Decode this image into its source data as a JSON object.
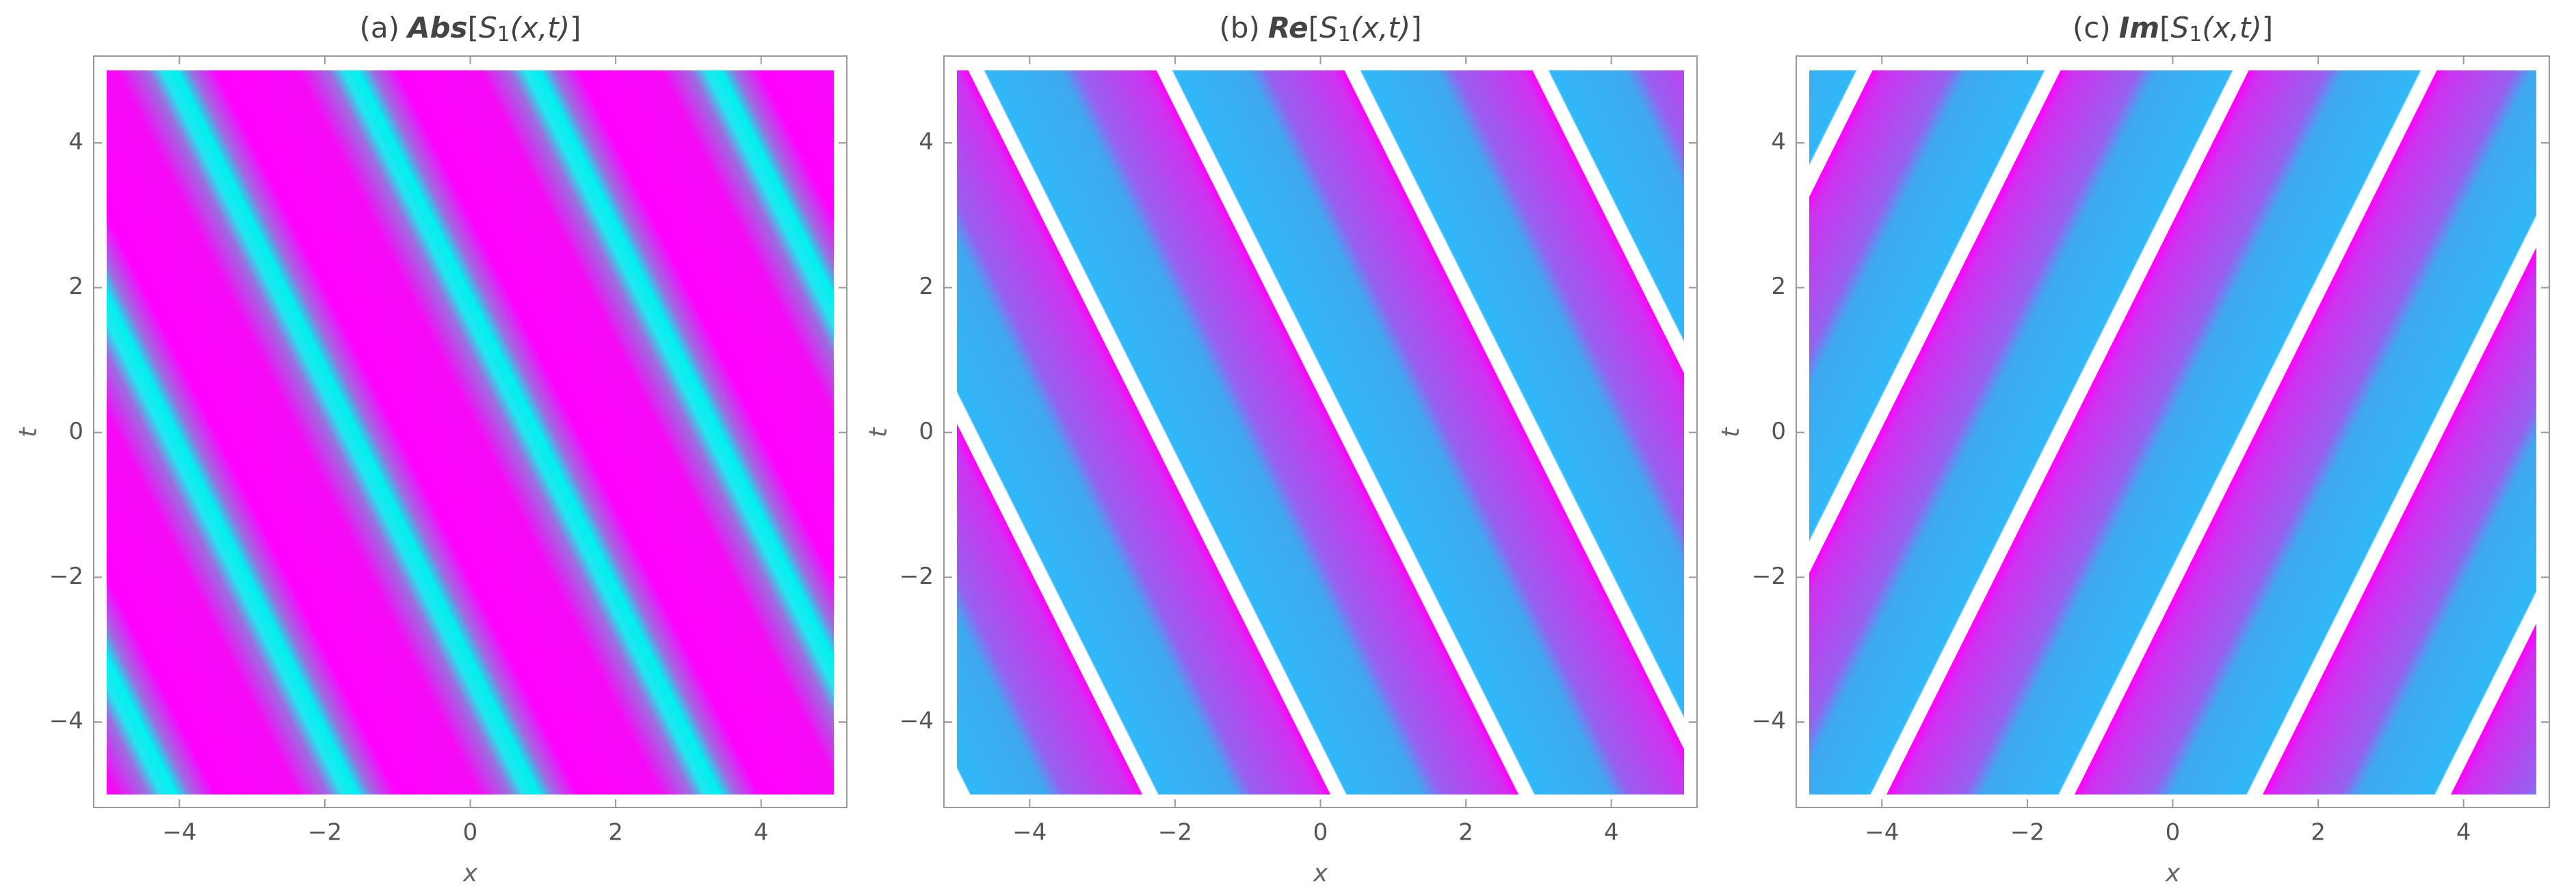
{
  "chart_data": [
    {
      "type": "contour",
      "title": {
        "label": "(a)",
        "operator": "Abs",
        "open": "[",
        "symbol": "S",
        "subscript": "1",
        "args": "(x,t)",
        "close": "]"
      },
      "xlabel": "x",
      "ylabel": "t",
      "xlim": [
        -5,
        5
      ],
      "ylim": [
        -5,
        5
      ],
      "xticks": [
        {
          "value": -4,
          "label": "−4"
        },
        {
          "value": -2,
          "label": "−2"
        },
        0,
        2,
        4
      ],
      "yticks": [
        {
          "value": -4,
          "label": "−4"
        },
        {
          "value": -2,
          "label": "−2"
        },
        0,
        2,
        4
      ]
    },
    {
      "type": "contour",
      "title": {
        "label": "(b)",
        "operator": "Re",
        "open": "[",
        "symbol": "S",
        "subscript": "1",
        "args": "(x,t)",
        "close": "]"
      },
      "xlabel": "x",
      "ylabel": "t",
      "xlim": [
        -5,
        5
      ],
      "ylim": [
        -5,
        5
      ],
      "xticks": [
        {
          "value": -4,
          "label": "−4"
        },
        {
          "value": -2,
          "label": "−2"
        },
        0,
        2,
        4
      ],
      "yticks": [
        {
          "value": -4,
          "label": "−4"
        },
        {
          "value": -2,
          "label": "−2"
        },
        0,
        2,
        4
      ]
    },
    {
      "type": "contour",
      "title": {
        "label": "(c)",
        "operator": "Im",
        "open": "[",
        "symbol": "S",
        "subscript": "1",
        "args": "(x,t)",
        "close": "]"
      },
      "xlabel": "x",
      "ylabel": "t",
      "xlim": [
        -5,
        5
      ],
      "ylim": [
        -5,
        5
      ],
      "xticks": [
        {
          "value": -4,
          "label": "−4"
        },
        {
          "value": -2,
          "label": "−2"
        },
        0,
        2,
        4
      ],
      "yticks": [
        {
          "value": -4,
          "label": "−4"
        },
        {
          "value": -2,
          "label": "−2"
        },
        0,
        2,
        4
      ]
    }
  ]
}
